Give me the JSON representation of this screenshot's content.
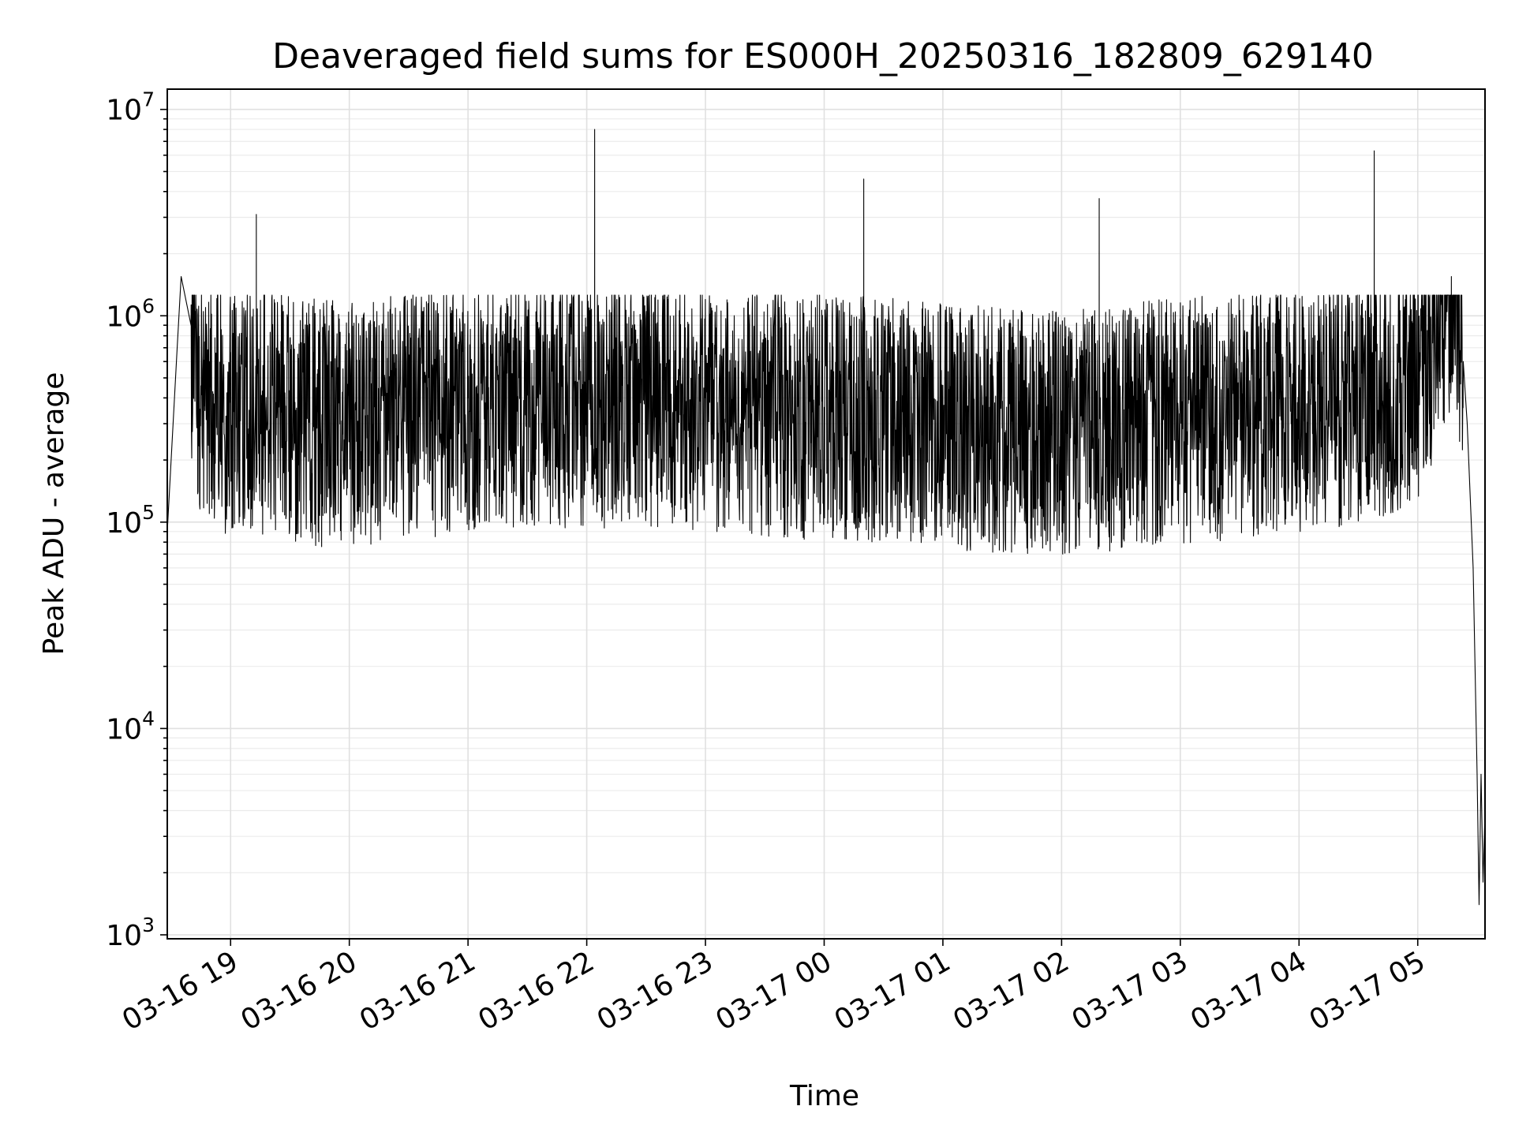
{
  "chart_data": {
    "type": "line",
    "title": "Deaveraged field sums for ES000H_20250316_182809_629140",
    "xlabel": "Time",
    "ylabel": "Peak ADU - average",
    "yscale": "log",
    "ylim": [
      1000,
      12000000
    ],
    "xlim": [
      "03-16 18:28",
      "03-17 05:34"
    ],
    "x_ticks": [
      "03-16 19",
      "03-16 20",
      "03-16 21",
      "03-16 22",
      "03-16 23",
      "03-17 00",
      "03-17 01",
      "03-17 02",
      "03-17 03",
      "03-17 04",
      "03-17 05"
    ],
    "y_ticks": [
      {
        "base": "10",
        "exp": "3",
        "value": 1000
      },
      {
        "base": "10",
        "exp": "4",
        "value": 10000
      },
      {
        "base": "10",
        "exp": "5",
        "value": 100000
      },
      {
        "base": "10",
        "exp": "6",
        "value": 1000000
      },
      {
        "base": "10",
        "exp": "7",
        "value": 10000000
      }
    ],
    "grid": true,
    "line_color": "#000000",
    "series": [
      {
        "typical_range": [
          100000,
          900000
        ],
        "spikes": [
          {
            "x": "03-16 19:13",
            "y": 3100000
          },
          {
            "x": "03-16 22:04",
            "y": 8000000
          },
          {
            "x": "03-17 00:20",
            "y": 4600000
          },
          {
            "x": "03-17 02:19",
            "y": 3700000
          },
          {
            "x": "03-17 04:38",
            "y": 6300000
          }
        ],
        "points": [
          {
            "x": "03-16 18:28",
            "y": 90000
          },
          {
            "x": "03-16 18:33",
            "y": 700000
          },
          {
            "x": "03-16 18:35",
            "y": 1550000
          },
          {
            "x": "03-16 18:40",
            "y": 900000
          },
          {
            "x": "03-16 18:45",
            "y": 450000
          },
          {
            "x": "03-16 19:00",
            "y": 380000
          },
          {
            "x": "03-16 19:30",
            "y": 350000
          },
          {
            "x": "03-16 20:00",
            "y": 330000
          },
          {
            "x": "03-16 21:00",
            "y": 400000
          },
          {
            "x": "03-16 22:00",
            "y": 420000
          },
          {
            "x": "03-16 23:00",
            "y": 400000
          },
          {
            "x": "03-17 00:00",
            "y": 360000
          },
          {
            "x": "03-17 01:00",
            "y": 330000
          },
          {
            "x": "03-17 02:00",
            "y": 300000
          },
          {
            "x": "03-17 03:00",
            "y": 350000
          },
          {
            "x": "03-17 04:00",
            "y": 380000
          },
          {
            "x": "03-17 05:00",
            "y": 520000
          },
          {
            "x": "03-17 05:17",
            "y": 1550000
          },
          {
            "x": "03-17 05:23",
            "y": 600000
          },
          {
            "x": "03-17 05:25",
            "y": 300000
          },
          {
            "x": "03-17 05:28",
            "y": 60000
          },
          {
            "x": "03-17 05:30",
            "y": 6000
          },
          {
            "x": "03-17 05:31",
            "y": 1400
          },
          {
            "x": "03-17 05:32",
            "y": 6000
          },
          {
            "x": "03-17 05:33",
            "y": 1800
          },
          {
            "x": "03-17 05:34",
            "y": 4000
          }
        ]
      }
    ]
  }
}
